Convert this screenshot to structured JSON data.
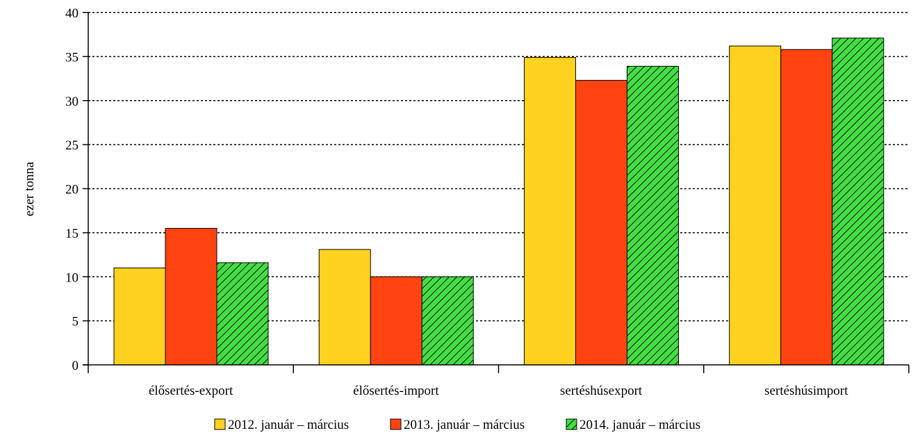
{
  "chart_data": {
    "type": "bar",
    "title": "",
    "xlabel": "",
    "ylabel": "ezer tonna",
    "ylim": [
      0,
      40
    ],
    "yticks": [
      0,
      5,
      10,
      15,
      20,
      25,
      30,
      35,
      40
    ],
    "grid": true,
    "legend_position": "bottom-center",
    "categories": [
      "élősertés-export",
      "élősertés-import",
      "sertéshúsexport",
      "sertéshúsimport"
    ],
    "series": [
      {
        "name": "2012. január – március",
        "values": [
          11.0,
          13.1,
          34.9,
          36.2
        ],
        "color": "#FFD21F",
        "pattern": "solid"
      },
      {
        "name": "2013. január – március",
        "values": [
          15.5,
          10.0,
          32.3,
          35.8
        ],
        "color": "#FF4411",
        "pattern": "solid"
      },
      {
        "name": "2014. január – március",
        "values": [
          11.6,
          10.0,
          33.9,
          37.1
        ],
        "color": "#44DD44",
        "pattern": "hatch"
      }
    ]
  }
}
